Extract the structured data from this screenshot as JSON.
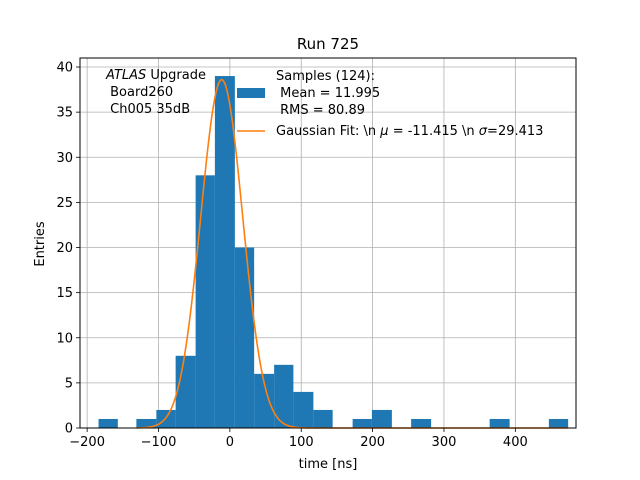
{
  "chart_data": {
    "type": "bar",
    "title": "Run 725",
    "xlabel": "time [ns]",
    "ylabel": "Entries",
    "xlim": [
      -210,
      485
    ],
    "ylim": [
      0,
      41
    ],
    "xticks": [
      -200,
      -100,
      0,
      100,
      200,
      300,
      400
    ],
    "yticks": [
      0,
      5,
      10,
      15,
      20,
      25,
      30,
      35,
      40
    ],
    "grid": true,
    "legend_position": "top-right",
    "bin_width": 27.5,
    "series": [
      {
        "name": "Samples (124):\n Mean = 11.995\n RMS = 80.89",
        "kind": "histogram",
        "color": "#1f77b4",
        "bins": [
          {
            "x0": -184,
            "x1": -157,
            "count": 1
          },
          {
            "x0": -131,
            "x1": -103,
            "count": 1
          },
          {
            "x0": -103,
            "x1": -76,
            "count": 2
          },
          {
            "x0": -76,
            "x1": -48,
            "count": 8
          },
          {
            "x0": -48,
            "x1": -21,
            "count": 28
          },
          {
            "x0": -21,
            "x1": 7,
            "count": 39
          },
          {
            "x0": 7,
            "x1": 34,
            "count": 20
          },
          {
            "x0": 34,
            "x1": 62,
            "count": 6
          },
          {
            "x0": 62,
            "x1": 89,
            "count": 7
          },
          {
            "x0": 89,
            "x1": 117,
            "count": 4
          },
          {
            "x0": 117,
            "x1": 144,
            "count": 2
          },
          {
            "x0": 172,
            "x1": 199,
            "count": 1
          },
          {
            "x0": 199,
            "x1": 227,
            "count": 2
          },
          {
            "x0": 254,
            "x1": 282,
            "count": 1
          },
          {
            "x0": 364,
            "x1": 392,
            "count": 1
          },
          {
            "x0": 447,
            "x1": 474,
            "count": 1
          }
        ]
      },
      {
        "name": "Gaussian Fit: \\n μ = -11.415 \\n σ=29.413",
        "kind": "gaussian",
        "color": "#ff7f0e",
        "amplitude": 38.6,
        "mu": -11.415,
        "sigma": 29.413,
        "x_range": [
          -131,
          474
        ]
      }
    ],
    "annotation": {
      "line1_italic": "ATLAS",
      "line1_rest": " Upgrade",
      "line2": " Board260",
      "line3": " Ch005 35dB"
    },
    "legend": {
      "hist_lines": [
        "Samples (124):",
        " Mean = 11.995",
        " RMS = 80.89"
      ],
      "fit_prefix": "Gaussian Fit: \\n ",
      "fit_mu_symbol": "μ",
      "fit_mu_text": " = -11.415 \\n ",
      "fit_sigma_symbol": "σ",
      "fit_sigma_text": "=29.413"
    }
  }
}
